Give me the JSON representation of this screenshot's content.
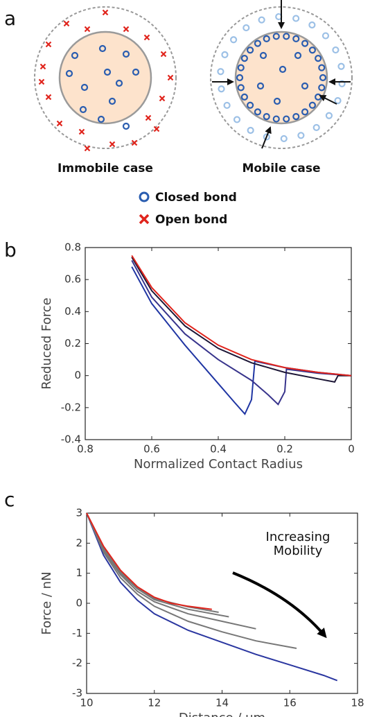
{
  "panel_a": {
    "label": "a",
    "captions": [
      "Immobile case",
      "Mobile case"
    ],
    "legend": [
      "Closed bond",
      "Open bond"
    ]
  },
  "chart_data": [
    {
      "type": "line",
      "panel_label": "b",
      "x_label": "Normalized Contact Radius",
      "y_label": "Reduced Force",
      "xlim": [
        0.8,
        0
      ],
      "xticks": [
        0.8,
        0.6,
        0.4,
        0.2,
        0
      ],
      "ylim": [
        -0.4,
        0.8
      ],
      "yticks": [
        -0.4,
        -0.2,
        0,
        0.2,
        0.4,
        0.6,
        0.8
      ],
      "series": [
        {
          "color": "#1f35a3",
          "x": [
            0.66,
            0.6,
            0.5,
            0.4,
            0.35,
            0.32,
            0.3,
            0.29,
            0.2,
            0.1,
            0
          ],
          "values": [
            0.68,
            0.45,
            0.19,
            -0.05,
            -0.17,
            -0.24,
            -0.15,
            0.09,
            0.05,
            0.02,
            0
          ]
        },
        {
          "color": "#38348c",
          "x": [
            0.66,
            0.6,
            0.5,
            0.4,
            0.3,
            0.25,
            0.22,
            0.2,
            0.195,
            0.1,
            0
          ],
          "values": [
            0.72,
            0.49,
            0.26,
            0.1,
            -0.03,
            -0.12,
            -0.18,
            -0.1,
            0.04,
            0.015,
            0
          ]
        },
        {
          "color": "#1c1636",
          "x": [
            0.66,
            0.6,
            0.5,
            0.4,
            0.3,
            0.2,
            0.1,
            0.05,
            0.04,
            0
          ],
          "values": [
            0.74,
            0.53,
            0.31,
            0.17,
            0.08,
            0.02,
            -0.02,
            -0.04,
            0,
            0
          ]
        },
        {
          "color": "#e0241c",
          "x": [
            0.66,
            0.6,
            0.5,
            0.4,
            0.3,
            0.2,
            0.1,
            0
          ],
          "values": [
            0.75,
            0.55,
            0.33,
            0.19,
            0.1,
            0.05,
            0.02,
            0
          ]
        }
      ]
    },
    {
      "type": "line",
      "panel_label": "c",
      "x_label": "Distance / µm",
      "y_label": "Force / nN",
      "xlim": [
        10,
        18
      ],
      "xticks": [
        10,
        12,
        14,
        16,
        18
      ],
      "ylim": [
        -3,
        3
      ],
      "yticks": [
        -3,
        -2,
        -1,
        0,
        1,
        2,
        3
      ],
      "annotation": [
        "Increasing",
        "Mobility"
      ],
      "series": [
        {
          "color": "#2a36a0",
          "x": [
            10,
            10.5,
            11,
            11.5,
            12,
            13,
            14,
            15,
            16,
            17,
            17.4
          ],
          "values": [
            3,
            1.6,
            0.7,
            0.1,
            -0.35,
            -0.9,
            -1.3,
            -1.7,
            -2.05,
            -2.4,
            -2.57
          ]
        },
        {
          "color": "#777777",
          "x": [
            10,
            10.5,
            11,
            11.5,
            12,
            13,
            14,
            15,
            16.2
          ],
          "values": [
            3,
            1.7,
            0.85,
            0.3,
            -0.1,
            -0.6,
            -0.95,
            -1.25,
            -1.5
          ]
        },
        {
          "color": "#777777",
          "x": [
            10,
            10.5,
            11,
            11.5,
            12,
            13,
            14,
            15
          ],
          "values": [
            3,
            1.75,
            0.95,
            0.4,
            0.05,
            -0.35,
            -0.6,
            -0.85
          ]
        },
        {
          "color": "#777777",
          "x": [
            10,
            10.5,
            11,
            11.5,
            12,
            13,
            14.2
          ],
          "values": [
            3,
            1.8,
            1.0,
            0.48,
            0.12,
            -0.2,
            -0.45
          ]
        },
        {
          "color": "#777777",
          "x": [
            10,
            10.5,
            11,
            11.5,
            12,
            13,
            13.9
          ],
          "values": [
            3,
            1.85,
            1.05,
            0.52,
            0.16,
            -0.12,
            -0.3
          ]
        },
        {
          "color": "#e0241c",
          "x": [
            10,
            10.5,
            11,
            11.5,
            12,
            12.5,
            13,
            13.7
          ],
          "values": [
            3,
            1.9,
            1.1,
            0.55,
            0.2,
            0,
            -0.1,
            -0.2
          ]
        }
      ]
    }
  ]
}
